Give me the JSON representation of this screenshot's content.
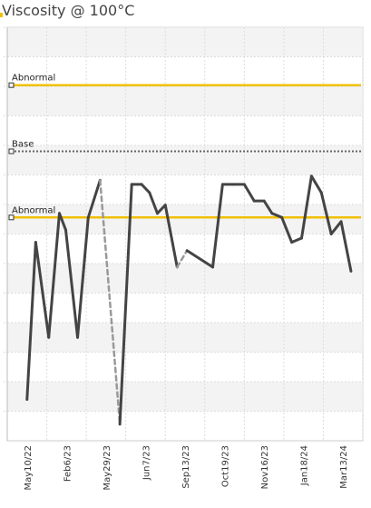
{
  "title": "Viscosity @ 100°C",
  "chart_data": {
    "type": "line",
    "title": "Viscosity @ 100°C",
    "xlabel": "",
    "ylabel": "",
    "grid": true,
    "x_ticks": [
      "May10/22",
      "Feb6/23",
      "May29/23",
      "Jun7/23",
      "Sep13/23",
      "Oct19/23",
      "Nov16/23",
      "Jan18/24",
      "Mar13/24"
    ],
    "ylim": [
      0,
      100
    ],
    "reference_lines": [
      {
        "label": "Abnormal",
        "value": 86,
        "color": "#f0c000",
        "style": "solid"
      },
      {
        "label": "Base",
        "value": 70,
        "color": "#666666",
        "style": "dotted"
      },
      {
        "label": "Abnormal",
        "value": 54,
        "color": "#f0c000",
        "style": "solid"
      }
    ],
    "series": [
      {
        "values": [
          [
            0,
            10
          ],
          [
            0.22,
            48
          ],
          [
            0.55,
            25
          ],
          [
            0.82,
            55
          ],
          [
            0.98,
            51
          ],
          [
            1.28,
            25
          ],
          [
            1.55,
            54
          ],
          [
            1.85,
            63
          ],
          [
            2.35,
            4
          ],
          [
            2.65,
            62
          ],
          [
            2.9,
            62
          ],
          [
            3.1,
            60
          ],
          [
            3.3,
            55
          ],
          [
            3.5,
            57
          ],
          [
            3.8,
            42
          ],
          [
            4.05,
            46
          ],
          [
            4.7,
            42
          ],
          [
            4.95,
            62
          ],
          [
            5.2,
            62
          ],
          [
            5.5,
            62
          ],
          [
            5.75,
            58
          ],
          [
            6.0,
            58
          ],
          [
            6.2,
            55
          ],
          [
            6.45,
            54
          ],
          [
            6.7,
            48
          ],
          [
            6.95,
            49
          ],
          [
            7.2,
            64
          ],
          [
            7.45,
            60
          ],
          [
            7.7,
            50
          ],
          [
            7.95,
            53
          ],
          [
            8.2,
            41
          ]
        ]
      }
    ],
    "gap_segments": [
      [
        7,
        8
      ],
      [
        14,
        15
      ]
    ],
    "line_color": "#444444",
    "gap_color": "#999999"
  }
}
